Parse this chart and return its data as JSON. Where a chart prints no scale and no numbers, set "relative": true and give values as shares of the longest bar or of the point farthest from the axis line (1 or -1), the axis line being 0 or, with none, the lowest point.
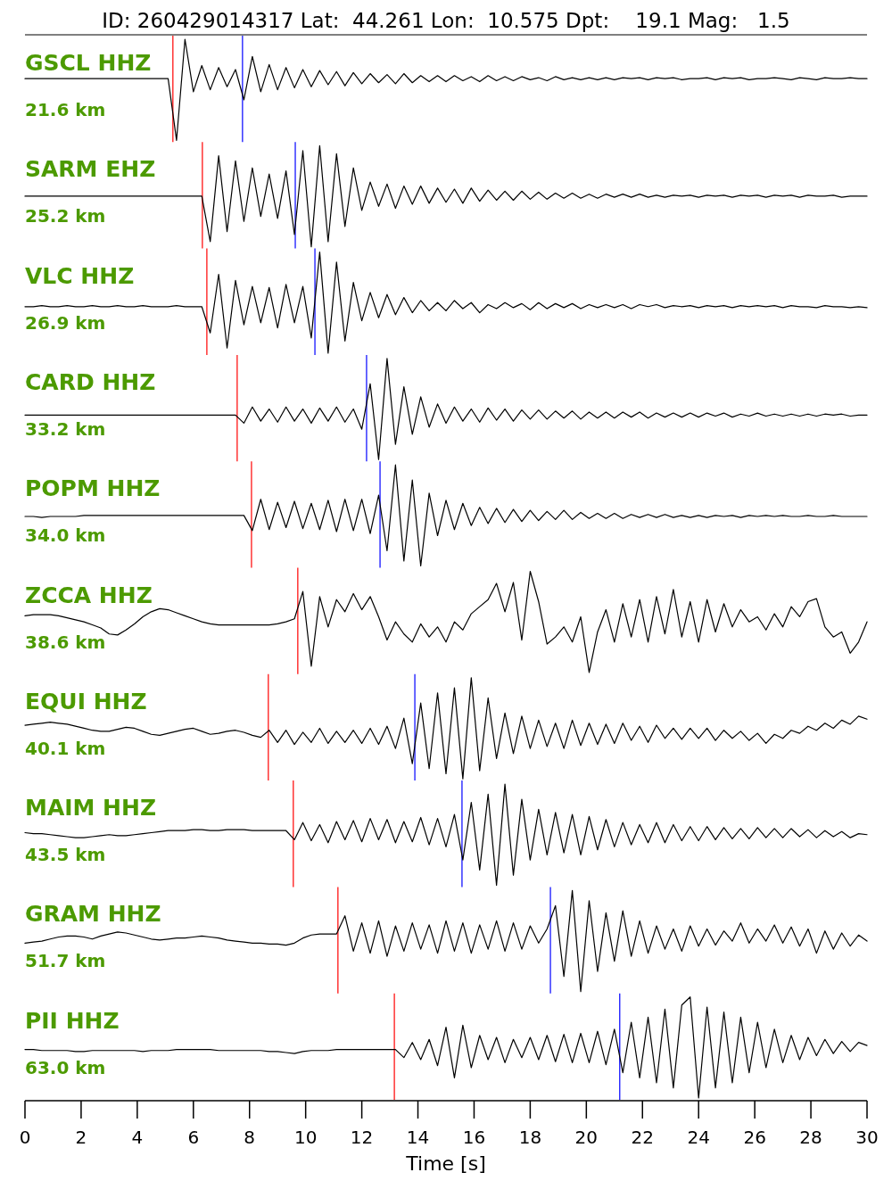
{
  "chart_data": [
    {
      "type": "line",
      "title": "GSCL HHZ",
      "subtitle": "21.6 km",
      "annotations": [
        "ID: 260429014317 Lat:  44.261 Lon:  10.575 Dpt:    19.1 Mag:   1.5"
      ],
      "relative": true,
      "xlim": [
        0,
        30
      ],
      "tick_labels": false,
      "x": [
        0,
        0.3,
        0.6,
        0.9,
        1.2,
        1.5,
        1.8,
        2.1,
        2.4,
        2.7,
        3,
        3.3,
        3.6,
        3.9,
        4.2,
        4.5,
        4.8,
        5.1,
        5.4,
        5.7,
        6,
        6.3,
        6.6,
        6.9,
        7.2,
        7.5,
        7.8,
        8.1,
        8.4,
        8.7,
        9,
        9.3,
        9.6,
        9.9,
        10.2,
        10.5,
        10.8,
        11.1,
        11.4,
        11.7,
        12,
        12.3,
        12.6,
        12.9,
        13.2,
        13.5,
        13.8,
        14.1,
        14.4,
        14.7,
        15,
        15.3,
        15.6,
        15.9,
        16.2,
        16.5,
        16.8,
        17.1,
        17.4,
        17.7,
        18,
        18.3,
        18.6,
        18.9,
        19.2,
        19.5,
        19.8,
        20.1,
        20.4,
        20.7,
        21,
        21.3,
        21.6,
        21.9,
        22.2,
        22.5,
        22.8,
        23.1,
        23.4,
        23.7,
        24,
        24.3,
        24.6,
        24.9,
        25.2,
        25.5,
        25.8,
        26.1,
        26.4,
        26.7,
        27,
        27.3,
        27.6,
        27.9,
        28.2,
        28.5,
        28.8,
        29.1,
        29.4,
        29.7,
        30
      ],
      "series": [
        {
          "color": "#000000",
          "values": [
            0.61,
            0.61,
            0.61,
            0.61,
            0.61,
            0.61,
            0.61,
            0.61,
            0.61,
            0.61,
            0.61,
            0.61,
            0.61,
            0.61,
            0.61,
            0.61,
            0.61,
            0.61,
            0.0,
            1.0,
            0.48,
            0.74,
            0.5,
            0.72,
            0.53,
            0.7,
            0.4,
            0.83,
            0.48,
            0.75,
            0.5,
            0.72,
            0.52,
            0.7,
            0.53,
            0.69,
            0.55,
            0.68,
            0.54,
            0.67,
            0.56,
            0.66,
            0.57,
            0.65,
            0.56,
            0.66,
            0.57,
            0.64,
            0.58,
            0.64,
            0.58,
            0.64,
            0.59,
            0.63,
            0.58,
            0.64,
            0.59,
            0.63,
            0.59,
            0.63,
            0.6,
            0.62,
            0.59,
            0.63,
            0.6,
            0.62,
            0.6,
            0.62,
            0.6,
            0.62,
            0.6,
            0.62,
            0.61,
            0.62,
            0.6,
            0.62,
            0.61,
            0.62,
            0.6,
            0.61,
            0.61,
            0.62,
            0.6,
            0.62,
            0.61,
            0.62,
            0.6,
            0.61,
            0.61,
            0.62,
            0.61,
            0.6,
            0.62,
            0.61,
            0.6,
            0.62,
            0.61,
            0.61,
            0.62,
            0.61,
            0.61
          ]
        }
      ],
      "ref_lines": [
        {
          "axis": "x",
          "value": 5.27,
          "color": "#ff0000"
        },
        {
          "axis": "x",
          "value": 7.75,
          "color": "#0000ff"
        }
      ]
    },
    {
      "type": "line",
      "title": "SARM EHZ",
      "subtitle": "25.2 km",
      "relative": true,
      "xlim": [
        0,
        30
      ],
      "tick_labels": false,
      "x": [
        0,
        0.3,
        0.6,
        0.9,
        1.2,
        1.5,
        1.8,
        2.1,
        2.4,
        2.7,
        3,
        3.3,
        3.6,
        3.9,
        4.2,
        4.5,
        4.8,
        5.1,
        5.4,
        5.7,
        6,
        6.3,
        6.6,
        6.9,
        7.2,
        7.5,
        7.8,
        8.1,
        8.4,
        8.7,
        9,
        9.3,
        9.6,
        9.9,
        10.2,
        10.5,
        10.8,
        11.1,
        11.4,
        11.7,
        12,
        12.3,
        12.6,
        12.9,
        13.2,
        13.5,
        13.8,
        14.1,
        14.4,
        14.7,
        15,
        15.3,
        15.6,
        15.9,
        16.2,
        16.5,
        16.8,
        17.1,
        17.4,
        17.7,
        18,
        18.3,
        18.6,
        18.9,
        19.2,
        19.5,
        19.8,
        20.1,
        20.4,
        20.7,
        21,
        21.3,
        21.6,
        21.9,
        22.2,
        22.5,
        22.8,
        23.1,
        23.4,
        23.7,
        24,
        24.3,
        24.6,
        24.9,
        25.2,
        25.5,
        25.8,
        26.1,
        26.4,
        26.7,
        27,
        27.3,
        27.6,
        27.9,
        28.2,
        28.5,
        28.8,
        29.1,
        29.4,
        29.7,
        30
      ],
      "series": [
        {
          "color": "#000000",
          "values": [
            0.5,
            0.5,
            0.5,
            0.5,
            0.5,
            0.5,
            0.5,
            0.5,
            0.5,
            0.5,
            0.5,
            0.5,
            0.5,
            0.5,
            0.5,
            0.5,
            0.5,
            0.5,
            0.5,
            0.5,
            0.5,
            0.5,
            0.05,
            0.9,
            0.15,
            0.85,
            0.25,
            0.78,
            0.3,
            0.72,
            0.28,
            0.75,
            0.12,
            0.95,
            0.0,
            1.0,
            0.05,
            0.92,
            0.2,
            0.78,
            0.36,
            0.64,
            0.4,
            0.62,
            0.38,
            0.6,
            0.42,
            0.6,
            0.43,
            0.58,
            0.44,
            0.57,
            0.43,
            0.58,
            0.45,
            0.56,
            0.46,
            0.55,
            0.46,
            0.55,
            0.47,
            0.54,
            0.47,
            0.53,
            0.48,
            0.53,
            0.48,
            0.52,
            0.48,
            0.52,
            0.49,
            0.52,
            0.49,
            0.52,
            0.49,
            0.51,
            0.49,
            0.51,
            0.5,
            0.51,
            0.49,
            0.51,
            0.5,
            0.51,
            0.49,
            0.51,
            0.5,
            0.51,
            0.49,
            0.51,
            0.5,
            0.51,
            0.49,
            0.51,
            0.5,
            0.5,
            0.51,
            0.49,
            0.5,
            0.5,
            0.5
          ]
        }
      ],
      "ref_lines": [
        {
          "axis": "x",
          "value": 6.32,
          "color": "#ff0000"
        },
        {
          "axis": "x",
          "value": 9.63,
          "color": "#0000ff"
        }
      ]
    },
    {
      "type": "line",
      "title": "VLC HHZ",
      "subtitle": "26.9 km",
      "relative": true,
      "xlim": [
        0,
        30
      ],
      "tick_labels": false,
      "x": [
        0,
        0.3,
        0.6,
        0.9,
        1.2,
        1.5,
        1.8,
        2.1,
        2.4,
        2.7,
        3,
        3.3,
        3.6,
        3.9,
        4.2,
        4.5,
        4.8,
        5.1,
        5.4,
        5.7,
        6,
        6.3,
        6.6,
        6.9,
        7.2,
        7.5,
        7.8,
        8.1,
        8.4,
        8.7,
        9,
        9.3,
        9.6,
        9.9,
        10.2,
        10.5,
        10.8,
        11.1,
        11.4,
        11.7,
        12,
        12.3,
        12.6,
        12.9,
        13.2,
        13.5,
        13.8,
        14.1,
        14.4,
        14.7,
        15,
        15.3,
        15.6,
        15.9,
        16.2,
        16.5,
        16.8,
        17.1,
        17.4,
        17.7,
        18,
        18.3,
        18.6,
        18.9,
        19.2,
        19.5,
        19.8,
        20.1,
        20.4,
        20.7,
        21,
        21.3,
        21.6,
        21.9,
        22.2,
        22.5,
        22.8,
        23.1,
        23.4,
        23.7,
        24,
        24.3,
        24.6,
        24.9,
        25.2,
        25.5,
        25.8,
        26.1,
        26.4,
        26.7,
        27,
        27.3,
        27.6,
        27.9,
        28.2,
        28.5,
        28.8,
        29.1,
        29.4,
        29.7,
        30
      ],
      "series": [
        {
          "color": "#000000",
          "values": [
            0.46,
            0.46,
            0.47,
            0.46,
            0.46,
            0.47,
            0.46,
            0.46,
            0.47,
            0.46,
            0.46,
            0.47,
            0.46,
            0.46,
            0.47,
            0.46,
            0.46,
            0.46,
            0.47,
            0.46,
            0.46,
            0.46,
            0.2,
            0.78,
            0.05,
            0.72,
            0.28,
            0.66,
            0.3,
            0.65,
            0.25,
            0.68,
            0.3,
            0.66,
            0.15,
            1.0,
            0.0,
            0.9,
            0.12,
            0.7,
            0.32,
            0.6,
            0.35,
            0.58,
            0.38,
            0.55,
            0.4,
            0.52,
            0.42,
            0.5,
            0.42,
            0.52,
            0.44,
            0.5,
            0.4,
            0.48,
            0.44,
            0.5,
            0.45,
            0.49,
            0.43,
            0.5,
            0.44,
            0.49,
            0.45,
            0.49,
            0.44,
            0.48,
            0.45,
            0.48,
            0.45,
            0.48,
            0.44,
            0.48,
            0.46,
            0.48,
            0.45,
            0.47,
            0.46,
            0.47,
            0.45,
            0.47,
            0.46,
            0.47,
            0.45,
            0.47,
            0.46,
            0.47,
            0.46,
            0.47,
            0.45,
            0.47,
            0.46,
            0.46,
            0.45,
            0.47,
            0.46,
            0.46,
            0.45,
            0.46,
            0.45
          ]
        }
      ],
      "ref_lines": [
        {
          "axis": "x",
          "value": 6.48,
          "color": "#ff0000"
        },
        {
          "axis": "x",
          "value": 10.33,
          "color": "#0000ff"
        }
      ]
    },
    {
      "type": "line",
      "title": "CARD HHZ",
      "subtitle": "33.2 km",
      "relative": true,
      "xlim": [
        0,
        30
      ],
      "tick_labels": false,
      "x": [
        0,
        0.3,
        0.6,
        0.9,
        1.2,
        1.5,
        1.8,
        2.1,
        2.4,
        2.7,
        3,
        3.3,
        3.6,
        3.9,
        4.2,
        4.5,
        4.8,
        5.1,
        5.4,
        5.7,
        6,
        6.3,
        6.6,
        6.9,
        7.2,
        7.5,
        7.8,
        8.1,
        8.4,
        8.7,
        9,
        9.3,
        9.6,
        9.9,
        10.2,
        10.5,
        10.8,
        11.1,
        11.4,
        11.7,
        12,
        12.3,
        12.6,
        12.9,
        13.2,
        13.5,
        13.8,
        14.1,
        14.4,
        14.7,
        15,
        15.3,
        15.6,
        15.9,
        16.2,
        16.5,
        16.8,
        17.1,
        17.4,
        17.7,
        18,
        18.3,
        18.6,
        18.9,
        19.2,
        19.5,
        19.8,
        20.1,
        20.4,
        20.7,
        21,
        21.3,
        21.6,
        21.9,
        22.2,
        22.5,
        22.8,
        23.1,
        23.4,
        23.7,
        24,
        24.3,
        24.6,
        24.9,
        25.2,
        25.5,
        25.8,
        26.1,
        26.4,
        26.7,
        27,
        27.3,
        27.6,
        27.9,
        28.2,
        28.5,
        28.8,
        29.1,
        29.4,
        29.7,
        30
      ],
      "series": [
        {
          "color": "#000000",
          "values": [
            0.44,
            0.44,
            0.44,
            0.44,
            0.44,
            0.44,
            0.44,
            0.44,
            0.44,
            0.44,
            0.44,
            0.44,
            0.44,
            0.44,
            0.44,
            0.44,
            0.44,
            0.44,
            0.44,
            0.44,
            0.44,
            0.44,
            0.44,
            0.44,
            0.44,
            0.44,
            0.36,
            0.52,
            0.38,
            0.5,
            0.37,
            0.52,
            0.38,
            0.5,
            0.36,
            0.51,
            0.38,
            0.52,
            0.37,
            0.5,
            0.3,
            0.75,
            0.0,
            1.0,
            0.15,
            0.72,
            0.25,
            0.62,
            0.32,
            0.55,
            0.36,
            0.52,
            0.38,
            0.5,
            0.37,
            0.51,
            0.39,
            0.5,
            0.38,
            0.49,
            0.4,
            0.49,
            0.4,
            0.48,
            0.41,
            0.48,
            0.4,
            0.47,
            0.41,
            0.47,
            0.41,
            0.47,
            0.42,
            0.47,
            0.41,
            0.46,
            0.42,
            0.46,
            0.42,
            0.46,
            0.42,
            0.46,
            0.43,
            0.46,
            0.42,
            0.45,
            0.43,
            0.46,
            0.43,
            0.45,
            0.43,
            0.45,
            0.43,
            0.45,
            0.43,
            0.45,
            0.44,
            0.45,
            0.43,
            0.44,
            0.44
          ]
        }
      ],
      "ref_lines": [
        {
          "axis": "x",
          "value": 7.56,
          "color": "#ff0000"
        },
        {
          "axis": "x",
          "value": 12.17,
          "color": "#0000ff"
        }
      ]
    },
    {
      "type": "line",
      "title": "POPM HHZ",
      "subtitle": "34.0 km",
      "relative": true,
      "xlim": [
        0,
        30
      ],
      "tick_labels": false,
      "x": [
        0,
        0.3,
        0.6,
        0.9,
        1.2,
        1.5,
        1.8,
        2.1,
        2.4,
        2.7,
        3,
        3.3,
        3.6,
        3.9,
        4.2,
        4.5,
        4.8,
        5.1,
        5.4,
        5.7,
        6,
        6.3,
        6.6,
        6.9,
        7.2,
        7.5,
        7.8,
        8.1,
        8.4,
        8.7,
        9,
        9.3,
        9.6,
        9.9,
        10.2,
        10.5,
        10.8,
        11.1,
        11.4,
        11.7,
        12,
        12.3,
        12.6,
        12.9,
        13.2,
        13.5,
        13.8,
        14.1,
        14.4,
        14.7,
        15,
        15.3,
        15.6,
        15.9,
        16.2,
        16.5,
        16.8,
        17.1,
        17.4,
        17.7,
        18,
        18.3,
        18.6,
        18.9,
        19.2,
        19.5,
        19.8,
        20.1,
        20.4,
        20.7,
        21,
        21.3,
        21.6,
        21.9,
        22.2,
        22.5,
        22.8,
        23.1,
        23.4,
        23.7,
        24,
        24.3,
        24.6,
        24.9,
        25.2,
        25.5,
        25.8,
        26.1,
        26.4,
        26.7,
        27,
        27.3,
        27.6,
        27.9,
        28.2,
        28.5,
        28.8,
        29.1,
        29.4,
        29.7,
        30
      ],
      "series": [
        {
          "color": "#000000",
          "values": [
            0.49,
            0.49,
            0.48,
            0.49,
            0.49,
            0.49,
            0.49,
            0.5,
            0.5,
            0.5,
            0.5,
            0.5,
            0.5,
            0.5,
            0.5,
            0.5,
            0.5,
            0.5,
            0.5,
            0.5,
            0.5,
            0.5,
            0.5,
            0.5,
            0.5,
            0.5,
            0.5,
            0.35,
            0.66,
            0.36,
            0.63,
            0.38,
            0.64,
            0.37,
            0.62,
            0.36,
            0.65,
            0.34,
            0.66,
            0.35,
            0.66,
            0.32,
            0.7,
            0.15,
            1.0,
            0.05,
            0.85,
            0.0,
            0.72,
            0.3,
            0.65,
            0.36,
            0.62,
            0.4,
            0.58,
            0.42,
            0.57,
            0.43,
            0.56,
            0.44,
            0.55,
            0.45,
            0.54,
            0.46,
            0.55,
            0.46,
            0.53,
            0.47,
            0.52,
            0.47,
            0.52,
            0.47,
            0.51,
            0.48,
            0.51,
            0.48,
            0.51,
            0.48,
            0.5,
            0.48,
            0.5,
            0.48,
            0.5,
            0.49,
            0.5,
            0.48,
            0.5,
            0.49,
            0.5,
            0.49,
            0.5,
            0.49,
            0.49,
            0.5,
            0.49,
            0.49,
            0.5,
            0.49,
            0.49,
            0.49,
            0.49
          ]
        }
      ],
      "ref_lines": [
        {
          "axis": "x",
          "value": 8.07,
          "color": "#ff0000"
        },
        {
          "axis": "x",
          "value": 12.65,
          "color": "#0000ff"
        }
      ]
    },
    {
      "type": "line",
      "title": "ZCCA HHZ",
      "subtitle": "38.6 km",
      "relative": true,
      "xlim": [
        0,
        30
      ],
      "tick_labels": false,
      "x": [
        0,
        0.3,
        0.6,
        0.9,
        1.2,
        1.5,
        1.8,
        2.1,
        2.4,
        2.7,
        3,
        3.3,
        3.6,
        3.9,
        4.2,
        4.5,
        4.8,
        5.1,
        5.4,
        5.7,
        6,
        6.3,
        6.6,
        6.9,
        7.2,
        7.5,
        7.8,
        8.1,
        8.4,
        8.7,
        9,
        9.3,
        9.6,
        9.9,
        10.2,
        10.5,
        10.8,
        11.1,
        11.4,
        11.7,
        12,
        12.3,
        12.6,
        12.9,
        13.2,
        13.5,
        13.8,
        14.1,
        14.4,
        14.7,
        15,
        15.3,
        15.6,
        15.9,
        16.2,
        16.5,
        16.8,
        17.1,
        17.4,
        17.7,
        18,
        18.3,
        18.6,
        18.9,
        19.2,
        19.5,
        19.8,
        20.1,
        20.4,
        20.7,
        21,
        21.3,
        21.6,
        21.9,
        22.2,
        22.5,
        22.8,
        23.1,
        23.4,
        23.7,
        24,
        24.3,
        24.6,
        24.9,
        25.2,
        25.5,
        25.8,
        26.1,
        26.4,
        26.7,
        27,
        27.3,
        27.6,
        27.9,
        28.2,
        28.5,
        28.8,
        29.1,
        29.4,
        29.7,
        30
      ],
      "series": [
        {
          "color": "#000000",
          "values": [
            0.56,
            0.57,
            0.57,
            0.57,
            0.56,
            0.54,
            0.52,
            0.5,
            0.47,
            0.44,
            0.38,
            0.37,
            0.42,
            0.48,
            0.55,
            0.6,
            0.63,
            0.62,
            0.59,
            0.56,
            0.53,
            0.5,
            0.48,
            0.47,
            0.47,
            0.47,
            0.47,
            0.47,
            0.47,
            0.47,
            0.48,
            0.5,
            0.53,
            0.8,
            0.06,
            0.75,
            0.45,
            0.72,
            0.6,
            0.78,
            0.62,
            0.75,
            0.55,
            0.32,
            0.5,
            0.38,
            0.3,
            0.48,
            0.35,
            0.45,
            0.3,
            0.5,
            0.42,
            0.58,
            0.65,
            0.72,
            0.88,
            0.6,
            0.89,
            0.32,
            1.0,
            0.7,
            0.28,
            0.35,
            0.45,
            0.3,
            0.55,
            0.0,
            0.4,
            0.62,
            0.3,
            0.68,
            0.35,
            0.72,
            0.3,
            0.75,
            0.38,
            0.82,
            0.35,
            0.7,
            0.3,
            0.72,
            0.4,
            0.68,
            0.45,
            0.62,
            0.5,
            0.55,
            0.42,
            0.58,
            0.45,
            0.65,
            0.55,
            0.7,
            0.73,
            0.45,
            0.35,
            0.4,
            0.19,
            0.3,
            0.5
          ]
        }
      ],
      "ref_lines": [
        {
          "axis": "x",
          "value": 9.72,
          "color": "#ff0000"
        }
      ]
    },
    {
      "type": "line",
      "title": "EQUI HHZ",
      "subtitle": "40.1 km",
      "relative": true,
      "xlim": [
        0,
        30
      ],
      "tick_labels": false,
      "x": [
        0,
        0.3,
        0.6,
        0.9,
        1.2,
        1.5,
        1.8,
        2.1,
        2.4,
        2.7,
        3,
        3.3,
        3.6,
        3.9,
        4.2,
        4.5,
        4.8,
        5.1,
        5.4,
        5.7,
        6,
        6.3,
        6.6,
        6.9,
        7.2,
        7.5,
        7.8,
        8.1,
        8.4,
        8.7,
        9,
        9.3,
        9.6,
        9.9,
        10.2,
        10.5,
        10.8,
        11.1,
        11.4,
        11.7,
        12,
        12.3,
        12.6,
        12.9,
        13.2,
        13.5,
        13.8,
        14.1,
        14.4,
        14.7,
        15,
        15.3,
        15.6,
        15.9,
        16.2,
        16.5,
        16.8,
        17.1,
        17.4,
        17.7,
        18,
        18.3,
        18.6,
        18.9,
        19.2,
        19.5,
        19.8,
        20.1,
        20.4,
        20.7,
        21,
        21.3,
        21.6,
        21.9,
        22.2,
        22.5,
        22.8,
        23.1,
        23.4,
        23.7,
        24,
        24.3,
        24.6,
        24.9,
        25.2,
        25.5,
        25.8,
        26.1,
        26.4,
        26.7,
        27,
        27.3,
        27.6,
        27.9,
        28.2,
        28.5,
        28.8,
        29.1,
        29.4,
        29.7,
        30
      ],
      "series": [
        {
          "color": "#000000",
          "values": [
            0.53,
            0.54,
            0.55,
            0.56,
            0.55,
            0.54,
            0.52,
            0.5,
            0.48,
            0.47,
            0.47,
            0.49,
            0.51,
            0.5,
            0.47,
            0.44,
            0.43,
            0.45,
            0.47,
            0.49,
            0.5,
            0.47,
            0.44,
            0.45,
            0.47,
            0.48,
            0.46,
            0.43,
            0.41,
            0.48,
            0.36,
            0.48,
            0.34,
            0.46,
            0.36,
            0.5,
            0.35,
            0.47,
            0.36,
            0.48,
            0.35,
            0.5,
            0.34,
            0.52,
            0.3,
            0.6,
            0.15,
            0.75,
            0.1,
            0.85,
            0.05,
            0.9,
            0.0,
            1.0,
            0.08,
            0.8,
            0.2,
            0.65,
            0.25,
            0.62,
            0.3,
            0.58,
            0.32,
            0.55,
            0.3,
            0.58,
            0.33,
            0.55,
            0.34,
            0.54,
            0.35,
            0.55,
            0.38,
            0.52,
            0.36,
            0.53,
            0.4,
            0.5,
            0.39,
            0.5,
            0.4,
            0.5,
            0.38,
            0.48,
            0.4,
            0.47,
            0.38,
            0.45,
            0.35,
            0.44,
            0.4,
            0.48,
            0.45,
            0.52,
            0.48,
            0.55,
            0.5,
            0.58,
            0.54,
            0.62,
            0.59
          ]
        }
      ],
      "ref_lines": [
        {
          "axis": "x",
          "value": 8.67,
          "color": "#ff0000"
        },
        {
          "axis": "x",
          "value": 13.89,
          "color": "#0000ff"
        }
      ]
    },
    {
      "type": "line",
      "title": "MAIM HHZ",
      "subtitle": "43.5 km",
      "relative": true,
      "xlim": [
        0,
        30
      ],
      "tick_labels": false,
      "x": [
        0,
        0.3,
        0.6,
        0.9,
        1.2,
        1.5,
        1.8,
        2.1,
        2.4,
        2.7,
        3,
        3.3,
        3.6,
        3.9,
        4.2,
        4.5,
        4.8,
        5.1,
        5.4,
        5.7,
        6,
        6.3,
        6.6,
        6.9,
        7.2,
        7.5,
        7.8,
        8.1,
        8.4,
        8.7,
        9,
        9.3,
        9.6,
        9.9,
        10.2,
        10.5,
        10.8,
        11.1,
        11.4,
        11.7,
        12,
        12.3,
        12.6,
        12.9,
        13.2,
        13.5,
        13.8,
        14.1,
        14.4,
        14.7,
        15,
        15.3,
        15.6,
        15.9,
        16.2,
        16.5,
        16.8,
        17.1,
        17.4,
        17.7,
        18,
        18.3,
        18.6,
        18.9,
        19.2,
        19.5,
        19.8,
        20.1,
        20.4,
        20.7,
        21,
        21.3,
        21.6,
        21.9,
        22.2,
        22.5,
        22.8,
        23.1,
        23.4,
        23.7,
        24,
        24.3,
        24.6,
        24.9,
        25.2,
        25.5,
        25.8,
        26.1,
        26.4,
        26.7,
        27,
        27.3,
        27.6,
        27.9,
        28.2,
        28.5,
        28.8,
        29.1,
        29.4,
        29.7,
        30
      ],
      "series": [
        {
          "color": "#000000",
          "values": [
            0.52,
            0.51,
            0.51,
            0.5,
            0.49,
            0.48,
            0.47,
            0.47,
            0.48,
            0.49,
            0.5,
            0.49,
            0.49,
            0.5,
            0.51,
            0.52,
            0.53,
            0.54,
            0.54,
            0.54,
            0.55,
            0.55,
            0.54,
            0.54,
            0.55,
            0.55,
            0.55,
            0.54,
            0.54,
            0.54,
            0.54,
            0.54,
            0.45,
            0.62,
            0.44,
            0.6,
            0.42,
            0.63,
            0.45,
            0.64,
            0.43,
            0.66,
            0.45,
            0.65,
            0.42,
            0.63,
            0.43,
            0.67,
            0.4,
            0.66,
            0.38,
            0.7,
            0.25,
            0.82,
            0.15,
            0.9,
            0.0,
            1.0,
            0.1,
            0.85,
            0.25,
            0.75,
            0.3,
            0.72,
            0.32,
            0.7,
            0.3,
            0.68,
            0.35,
            0.65,
            0.38,
            0.62,
            0.4,
            0.6,
            0.42,
            0.62,
            0.42,
            0.6,
            0.44,
            0.58,
            0.44,
            0.58,
            0.45,
            0.57,
            0.46,
            0.56,
            0.46,
            0.57,
            0.47,
            0.56,
            0.47,
            0.56,
            0.48,
            0.55,
            0.47,
            0.54,
            0.48,
            0.53,
            0.47,
            0.51,
            0.5
          ]
        }
      ],
      "ref_lines": [
        {
          "axis": "x",
          "value": 9.56,
          "color": "#ff0000"
        },
        {
          "axis": "x",
          "value": 15.57,
          "color": "#0000ff"
        }
      ]
    },
    {
      "type": "line",
      "title": "GRAM HHZ",
      "subtitle": "51.7 km",
      "relative": true,
      "xlim": [
        0,
        30
      ],
      "tick_labels": false,
      "x": [
        0,
        0.3,
        0.6,
        0.9,
        1.2,
        1.5,
        1.8,
        2.1,
        2.4,
        2.7,
        3,
        3.3,
        3.6,
        3.9,
        4.2,
        4.5,
        4.8,
        5.1,
        5.4,
        5.7,
        6,
        6.3,
        6.6,
        6.9,
        7.2,
        7.5,
        7.8,
        8.1,
        8.4,
        8.7,
        9,
        9.3,
        9.6,
        9.9,
        10.2,
        10.5,
        10.8,
        11.1,
        11.4,
        11.7,
        12,
        12.3,
        12.6,
        12.9,
        13.2,
        13.5,
        13.8,
        14.1,
        14.4,
        14.7,
        15,
        15.3,
        15.6,
        15.9,
        16.2,
        16.5,
        16.8,
        17.1,
        17.4,
        17.7,
        18,
        18.3,
        18.6,
        18.9,
        19.2,
        19.5,
        19.8,
        20.1,
        20.4,
        20.7,
        21,
        21.3,
        21.6,
        21.9,
        22.2,
        22.5,
        22.8,
        23.1,
        23.4,
        23.7,
        24,
        24.3,
        24.6,
        24.9,
        25.2,
        25.5,
        25.8,
        26.1,
        26.4,
        26.7,
        27,
        27.3,
        27.6,
        27.9,
        28.2,
        28.5,
        28.8,
        29.1,
        29.4,
        29.7,
        30
      ],
      "series": [
        {
          "color": "#000000",
          "values": [
            0.48,
            0.49,
            0.5,
            0.52,
            0.54,
            0.55,
            0.55,
            0.54,
            0.52,
            0.55,
            0.57,
            0.59,
            0.58,
            0.56,
            0.54,
            0.52,
            0.51,
            0.52,
            0.53,
            0.53,
            0.54,
            0.55,
            0.54,
            0.53,
            0.51,
            0.5,
            0.49,
            0.48,
            0.48,
            0.47,
            0.47,
            0.46,
            0.48,
            0.53,
            0.56,
            0.57,
            0.57,
            0.57,
            0.75,
            0.4,
            0.68,
            0.38,
            0.7,
            0.35,
            0.65,
            0.4,
            0.68,
            0.42,
            0.66,
            0.38,
            0.7,
            0.4,
            0.68,
            0.38,
            0.66,
            0.42,
            0.7,
            0.4,
            0.68,
            0.42,
            0.65,
            0.48,
            0.62,
            0.85,
            0.15,
            1.0,
            0.0,
            0.9,
            0.2,
            0.78,
            0.3,
            0.8,
            0.35,
            0.7,
            0.38,
            0.65,
            0.42,
            0.62,
            0.4,
            0.65,
            0.45,
            0.62,
            0.46,
            0.6,
            0.5,
            0.68,
            0.48,
            0.62,
            0.5,
            0.66,
            0.48,
            0.64,
            0.45,
            0.62,
            0.38,
            0.6,
            0.42,
            0.58,
            0.45,
            0.56,
            0.5
          ]
        }
      ],
      "ref_lines": [
        {
          "axis": "x",
          "value": 11.15,
          "color": "#ff0000"
        },
        {
          "axis": "x",
          "value": 18.72,
          "color": "#0000ff"
        }
      ]
    },
    {
      "type": "line",
      "title": "PII HHZ",
      "subtitle": "63.0 km",
      "relative": true,
      "xlim": [
        0,
        30
      ],
      "xlabel": "Time [s]",
      "xticks": [
        0,
        2,
        4,
        6,
        8,
        10,
        12,
        14,
        16,
        18,
        20,
        22,
        24,
        26,
        28,
        30
      ],
      "x": [
        0,
        0.3,
        0.6,
        0.9,
        1.2,
        1.5,
        1.8,
        2.1,
        2.4,
        2.7,
        3,
        3.3,
        3.6,
        3.9,
        4.2,
        4.5,
        4.8,
        5.1,
        5.4,
        5.7,
        6,
        6.3,
        6.6,
        6.9,
        7.2,
        7.5,
        7.8,
        8.1,
        8.4,
        8.7,
        9,
        9.3,
        9.6,
        9.9,
        10.2,
        10.5,
        10.8,
        11.1,
        11.4,
        11.7,
        12,
        12.3,
        12.6,
        12.9,
        13.2,
        13.5,
        13.8,
        14.1,
        14.4,
        14.7,
        15,
        15.3,
        15.6,
        15.9,
        16.2,
        16.5,
        16.8,
        17.1,
        17.4,
        17.7,
        18,
        18.3,
        18.6,
        18.9,
        19.2,
        19.5,
        19.8,
        20.1,
        20.4,
        20.7,
        21,
        21.3,
        21.6,
        21.9,
        22.2,
        22.5,
        22.8,
        23.1,
        23.4,
        23.7,
        24,
        24.3,
        24.6,
        24.9,
        25.2,
        25.5,
        25.8,
        26.1,
        26.4,
        26.7,
        27,
        27.3,
        27.6,
        27.9,
        28.2,
        28.5,
        28.8,
        29.1,
        29.4,
        29.7,
        30
      ],
      "series": [
        {
          "color": "#000000",
          "values": [
            0.48,
            0.48,
            0.47,
            0.47,
            0.47,
            0.47,
            0.46,
            0.46,
            0.47,
            0.47,
            0.47,
            0.47,
            0.47,
            0.47,
            0.46,
            0.47,
            0.47,
            0.47,
            0.48,
            0.48,
            0.48,
            0.48,
            0.48,
            0.47,
            0.47,
            0.47,
            0.47,
            0.47,
            0.47,
            0.46,
            0.46,
            0.45,
            0.44,
            0.46,
            0.47,
            0.47,
            0.47,
            0.48,
            0.48,
            0.48,
            0.48,
            0.48,
            0.48,
            0.48,
            0.48,
            0.4,
            0.55,
            0.38,
            0.58,
            0.32,
            0.7,
            0.2,
            0.72,
            0.3,
            0.62,
            0.38,
            0.6,
            0.35,
            0.58,
            0.4,
            0.6,
            0.38,
            0.62,
            0.36,
            0.63,
            0.35,
            0.64,
            0.35,
            0.66,
            0.33,
            0.68,
            0.25,
            0.75,
            0.2,
            0.8,
            0.15,
            0.88,
            0.1,
            0.92,
            1.0,
            0.0,
            0.9,
            0.1,
            0.85,
            0.15,
            0.8,
            0.25,
            0.75,
            0.3,
            0.68,
            0.35,
            0.62,
            0.38,
            0.6,
            0.42,
            0.58,
            0.44,
            0.56,
            0.46,
            0.55,
            0.52
          ]
        }
      ],
      "ref_lines": [
        {
          "axis": "x",
          "value": 13.16,
          "color": "#ff0000"
        },
        {
          "axis": "x",
          "value": 21.19,
          "color": "#0000ff"
        }
      ]
    }
  ]
}
